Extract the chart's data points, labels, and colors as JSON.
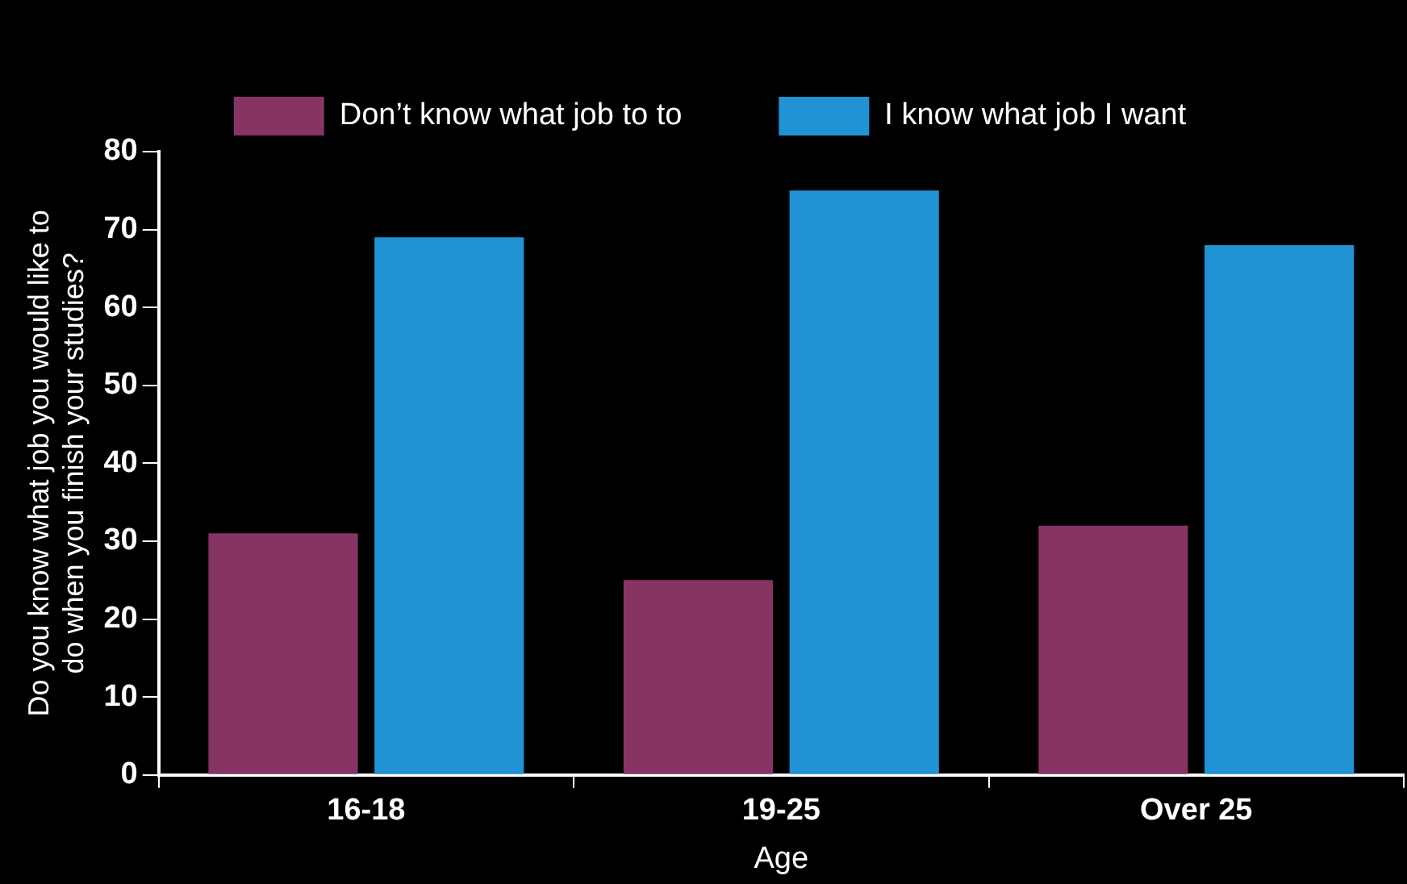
{
  "chart_data": {
    "type": "bar",
    "xlabel": "Age",
    "ylabel": "Do you know what job you would like to do when you finish your studies?",
    "categories": [
      "16-18",
      "19-25",
      "Over 25"
    ],
    "series": [
      {
        "name": "Don’t know what job to to",
        "color": "#873464",
        "values": [
          31,
          25,
          32
        ]
      },
      {
        "name": "I know what job I want",
        "color": "#2193d4",
        "values": [
          69,
          75,
          68
        ]
      }
    ],
    "ylim": [
      0,
      80
    ],
    "yticks": [
      0,
      10,
      20,
      30,
      40,
      50,
      60,
      70,
      80
    ],
    "grid": false,
    "legend": "top"
  }
}
